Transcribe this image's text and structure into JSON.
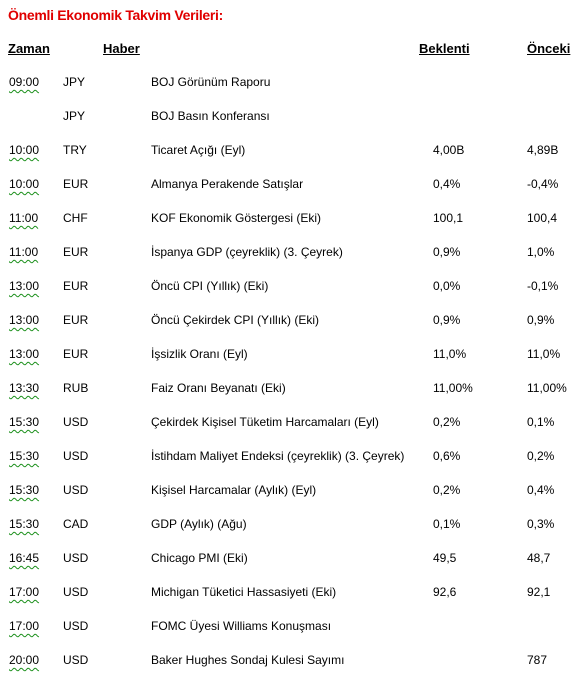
{
  "title": "Önemli Ekonomik Takvim Verileri:",
  "headers": {
    "time": "Zaman",
    "news": "Haber",
    "expected": "Beklenti",
    "previous": "Önceki"
  },
  "rows": [
    {
      "time": "09:00",
      "currency": "JPY",
      "news": "BOJ Görünüm Raporu",
      "expected": "",
      "previous": ""
    },
    {
      "time": "",
      "currency": "JPY",
      "news": "BOJ Basın Konferansı",
      "expected": "",
      "previous": ""
    },
    {
      "time": "10:00",
      "currency": "TRY",
      "news": "Ticaret Açığı (Eyl)",
      "expected": "4,00B",
      "previous": "4,89B"
    },
    {
      "time": "10:00",
      "currency": "EUR",
      "news": "Almanya Perakende Satışlar",
      "expected": "0,4%",
      "previous": "-0,4%"
    },
    {
      "time": "11:00",
      "currency": "CHF",
      "news": "KOF Ekonomik Göstergesi (Eki)",
      "expected": "100,1",
      "previous": "100,4"
    },
    {
      "time": "11:00",
      "currency": "EUR",
      "news": "İspanya GDP (çeyreklik) (3. Çeyrek)",
      "expected": "0,9%",
      "previous": "1,0%"
    },
    {
      "time": "13:00",
      "currency": "EUR",
      "news": "Öncü CPI (Yıllık)  (Eki)",
      "expected": "0,0%",
      "previous": "-0,1%"
    },
    {
      "time": "13:00",
      "currency": "EUR",
      "news": "Öncü Çekirdek CPI (Yıllık) (Eki)",
      "expected": "0,9%",
      "previous": "0,9%"
    },
    {
      "time": "13:00",
      "currency": "EUR",
      "news": "İşsizlik Oranı (Eyl)",
      "expected": "11,0%",
      "previous": "11,0%"
    },
    {
      "time": "13:30",
      "currency": "RUB",
      "news": "Faiz Oranı Beyanatı (Eki)",
      "expected": "11,00%",
      "previous": "11,00%"
    },
    {
      "time": "15:30",
      "currency": "USD",
      "news": "Çekirdek Kişisel Tüketim Harcamaları  (Eyl)",
      "expected": "0,2%",
      "previous": "0,1%"
    },
    {
      "time": "15:30",
      "currency": "USD",
      "news": "İstihdam Maliyet Endeksi (çeyreklik) (3. Çeyrek)",
      "expected": "0,6%",
      "previous": "0,2%"
    },
    {
      "time": "15:30",
      "currency": "USD",
      "news": "Kişisel Harcamalar (Aylık) (Eyl)",
      "expected": "0,2%",
      "previous": "0,4%"
    },
    {
      "time": "15:30",
      "currency": "CAD",
      "news": "GDP (Aylık) (Ağu)",
      "expected": "0,1%",
      "previous": "0,3%"
    },
    {
      "time": "16:45",
      "currency": "USD",
      "news": "Chicago PMI (Eki)",
      "expected": "49,5",
      "previous": "48,7"
    },
    {
      "time": "17:00",
      "currency": "USD",
      "news": "Michigan Tüketici Hassasiyeti (Eki)",
      "expected": "92,6",
      "previous": "92,1"
    },
    {
      "time": "17:00",
      "currency": "USD",
      "news": "FOMC Üyesi Williams Konuşması",
      "expected": "",
      "previous": ""
    },
    {
      "time": "20:00",
      "currency": "USD",
      "news": "Baker Hughes Sondaj Kulesi Sayımı",
      "expected": "",
      "previous": "787"
    }
  ]
}
